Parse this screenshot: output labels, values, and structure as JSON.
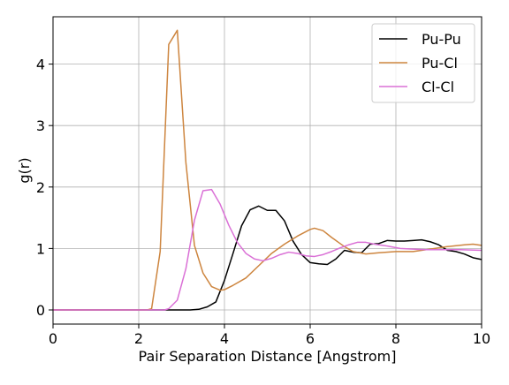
{
  "chart_data": {
    "type": "line",
    "title": "",
    "xlabel": "Pair Separation Distance [Angstrom]",
    "ylabel": "g(r)",
    "xlim": [
      0,
      10
    ],
    "ylim": [
      -0.23,
      4.77
    ],
    "xticks": [
      0,
      2,
      4,
      6,
      8,
      10
    ],
    "yticks": [
      0,
      1,
      2,
      3,
      4
    ],
    "grid": true,
    "legend_position": "top-right",
    "series": [
      {
        "name": "Pu-Pu",
        "color": "#000000",
        "x": [
          0,
          0.2,
          0.4,
          0.6,
          0.8,
          1.0,
          1.2,
          1.4,
          1.6,
          1.8,
          2.0,
          2.2,
          2.4,
          2.6,
          2.8,
          3.0,
          3.2,
          3.4,
          3.6,
          3.8,
          4.0,
          4.2,
          4.4,
          4.6,
          4.8,
          5.0,
          5.2,
          5.4,
          5.6,
          5.8,
          6.0,
          6.2,
          6.4,
          6.6,
          6.8,
          7.0,
          7.2,
          7.4,
          7.6,
          7.8,
          8.0,
          8.2,
          8.4,
          8.6,
          8.8,
          9.0,
          9.2,
          9.4,
          9.6,
          9.8,
          10.0
        ],
        "y": [
          0,
          0,
          0,
          0,
          0,
          0,
          0,
          0,
          0,
          0,
          0,
          0,
          0,
          0,
          0,
          0,
          0,
          0.01,
          0.05,
          0.13,
          0.48,
          0.92,
          1.37,
          1.63,
          1.69,
          1.62,
          1.62,
          1.45,
          1.12,
          0.9,
          0.77,
          0.75,
          0.74,
          0.83,
          0.97,
          0.94,
          0.93,
          1.07,
          1.08,
          1.13,
          1.12,
          1.12,
          1.13,
          1.14,
          1.11,
          1.06,
          0.97,
          0.95,
          0.91,
          0.85,
          0.82
        ]
      },
      {
        "name": "Pu-Cl",
        "color": "#cd853f",
        "x": [
          0,
          0.2,
          0.4,
          0.6,
          0.8,
          1.0,
          1.2,
          1.4,
          1.6,
          1.8,
          2.0,
          2.2,
          2.3,
          2.5,
          2.7,
          2.9,
          3.1,
          3.3,
          3.5,
          3.7,
          3.9,
          4.0,
          4.2,
          4.5,
          4.8,
          5.1,
          5.4,
          5.7,
          6.0,
          6.1,
          6.3,
          6.5,
          6.8,
          7.0,
          7.3,
          7.6,
          8.0,
          8.4,
          8.8,
          9.2,
          9.6,
          9.8,
          10.0
        ],
        "y": [
          0,
          0,
          0,
          0,
          0,
          0,
          0,
          0,
          0,
          0,
          0,
          0,
          0.02,
          0.95,
          4.32,
          4.55,
          2.4,
          1.05,
          0.6,
          0.38,
          0.32,
          0.33,
          0.4,
          0.52,
          0.72,
          0.92,
          1.07,
          1.2,
          1.31,
          1.33,
          1.29,
          1.18,
          1.03,
          0.95,
          0.91,
          0.93,
          0.95,
          0.95,
          0.99,
          1.03,
          1.06,
          1.07,
          1.05
        ]
      },
      {
        "name": "Cl-Cl",
        "color": "#da70d6",
        "x": [
          0,
          0.2,
          0.4,
          0.6,
          0.8,
          1.0,
          1.2,
          1.4,
          1.6,
          1.8,
          2.0,
          2.2,
          2.4,
          2.6,
          2.7,
          2.9,
          3.1,
          3.3,
          3.5,
          3.7,
          3.9,
          4.1,
          4.3,
          4.5,
          4.7,
          4.9,
          5.1,
          5.3,
          5.5,
          5.7,
          5.9,
          6.1,
          6.3,
          6.5,
          6.7,
          6.9,
          7.1,
          7.3,
          7.5,
          7.8,
          8.1,
          8.4,
          8.7,
          9.0,
          9.5,
          10.0
        ],
        "y": [
          0,
          0,
          0,
          0,
          0,
          0,
          0,
          0,
          0,
          0,
          0,
          0,
          0,
          0,
          0.02,
          0.16,
          0.67,
          1.46,
          1.94,
          1.96,
          1.72,
          1.38,
          1.1,
          0.92,
          0.83,
          0.8,
          0.84,
          0.9,
          0.94,
          0.92,
          0.88,
          0.87,
          0.9,
          0.95,
          1.01,
          1.06,
          1.1,
          1.1,
          1.07,
          1.04,
          1.0,
          0.99,
          0.98,
          0.98,
          0.98,
          0.97
        ]
      }
    ]
  }
}
